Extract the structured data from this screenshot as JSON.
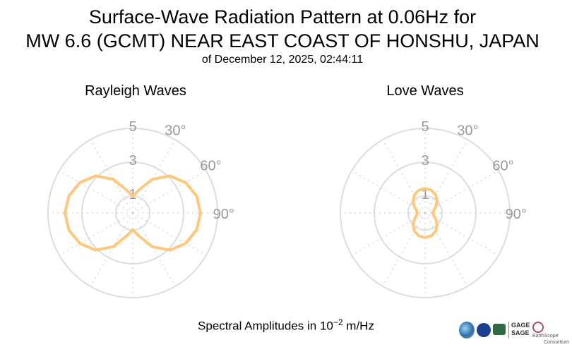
{
  "title": {
    "line1": "Surface-Wave Radiation Pattern at 0.06Hz for",
    "line2": "MW 6.6 (GCMT) NEAR EAST COAST OF HONSHU, JAPAN",
    "line3": "of December 12, 2025, 02:44:11"
  },
  "xlabel": {
    "prefix": "Spectral Amplitudes in ",
    "base": "10",
    "exponent": "−2",
    "unit": " m/Hz"
  },
  "logos": {
    "gage": "GAGE",
    "sage": "SAGE",
    "earthscope": "EarthScope",
    "consortium": "Consortium"
  },
  "chart_data": [
    {
      "type": "line",
      "projection": "polar",
      "title": "Rayleigh Waves",
      "theta_direction": "clockwise",
      "theta_zero": "north",
      "theta_tick_labels": [
        "30°",
        "60°",
        "90°"
      ],
      "r_tick_labels": [
        "1",
        "3",
        "5"
      ],
      "rlim": [
        0,
        5
      ],
      "grid": true,
      "line_color": "#fdc77e",
      "series": [
        {
          "theta_deg": [
            0,
            15,
            30,
            45,
            60,
            75,
            90,
            105,
            120,
            135,
            150,
            165,
            180,
            195,
            210,
            225,
            240,
            255,
            270,
            285,
            300,
            315,
            330,
            345
          ],
          "r": [
            1.0,
            1.4,
            2.3,
            3.1,
            3.6,
            3.9,
            4.0,
            3.9,
            3.6,
            3.1,
            2.3,
            1.4,
            1.0,
            1.4,
            2.3,
            3.1,
            3.6,
            3.9,
            4.0,
            3.9,
            3.6,
            3.1,
            2.3,
            1.4
          ]
        }
      ]
    },
    {
      "type": "line",
      "projection": "polar",
      "title": "Love Waves",
      "theta_direction": "clockwise",
      "theta_zero": "north",
      "theta_tick_labels": [
        "30°",
        "60°",
        "90°"
      ],
      "r_tick_labels": [
        "1",
        "3",
        "5"
      ],
      "rlim": [
        0,
        5
      ],
      "grid": true,
      "line_color": "#fdc77e",
      "series": [
        {
          "theta_deg": [
            0,
            15,
            30,
            45,
            60,
            75,
            90,
            105,
            120,
            135,
            150,
            165,
            180,
            195,
            210,
            225,
            240,
            255,
            270,
            285,
            300,
            315,
            330,
            345
          ],
          "r": [
            1.45,
            1.4,
            1.25,
            1.0,
            0.72,
            0.52,
            0.45,
            0.52,
            0.72,
            1.0,
            1.25,
            1.4,
            1.45,
            1.4,
            1.25,
            1.0,
            0.72,
            0.52,
            0.45,
            0.52,
            0.72,
            1.0,
            1.25,
            1.4
          ]
        }
      ]
    }
  ]
}
